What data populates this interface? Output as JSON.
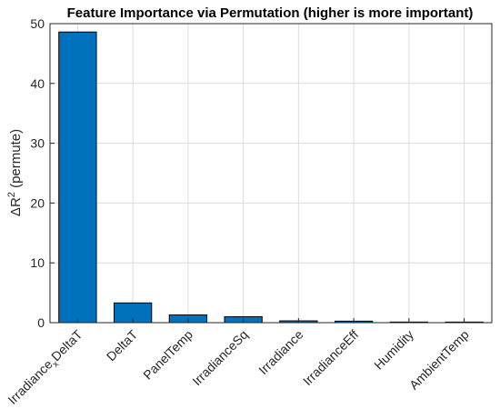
{
  "chart_data": {
    "type": "bar",
    "title": "Feature Importance via Permutation (higher is more important)",
    "ylabel": "ΔR² (permute)",
    "xlabel": "",
    "categories": [
      "Irradiance_xDeltaT",
      "DeltaT",
      "PanelTemp",
      "IrradianceSq",
      "Irradiance",
      "IrradianceEff",
      "Humidity",
      "AmbientTemp"
    ],
    "values": [
      48.6,
      3.3,
      1.3,
      1.0,
      0.3,
      0.25,
      0.1,
      0.1
    ],
    "ylim": [
      0,
      50
    ],
    "yticks": [
      0,
      10,
      20,
      30,
      40,
      50
    ],
    "bar_color": "#0072BD",
    "grid": true,
    "legend": "none"
  }
}
